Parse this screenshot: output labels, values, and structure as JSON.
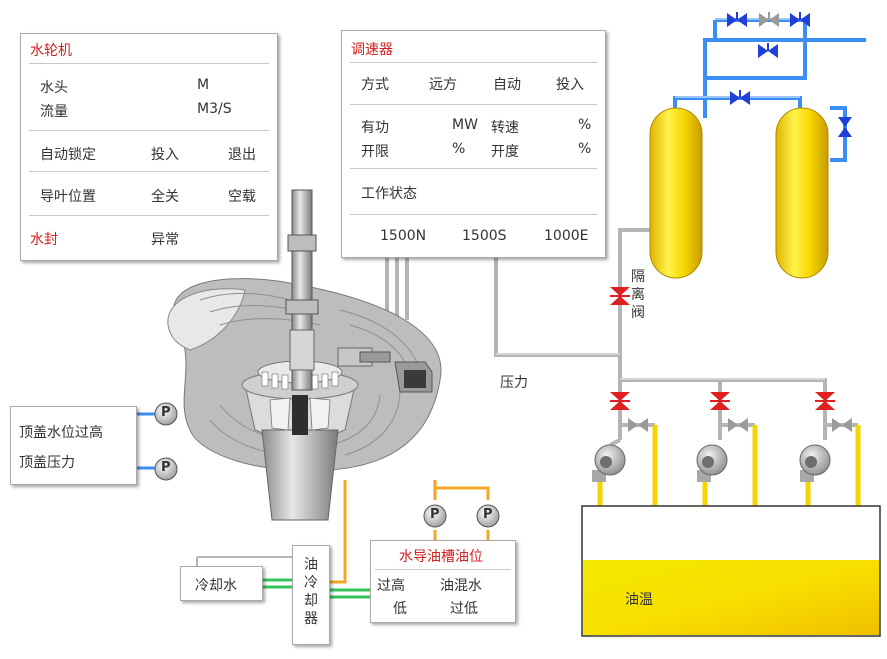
{
  "turbine_panel": {
    "title": "水轮机",
    "head_label": "水头",
    "head_unit": "M",
    "flow_label": "流量",
    "flow_unit": "M3/S",
    "auto_lock_label": "自动锁定",
    "auto_lock_on": "投入",
    "auto_lock_off": "退出",
    "guide_vane_label": "导叶位置",
    "guide_vane_closed": "全关",
    "guide_vane_noload": "空载",
    "water_seal_label": "水封",
    "water_seal_status": "异常"
  },
  "governor_panel": {
    "title": "调速器",
    "mode_label": "方式",
    "mode_remote": "远方",
    "mode_auto": "自动",
    "mode_on": "投入",
    "active_power_label": "有功",
    "active_power_unit": "MW",
    "speed_label": "转速",
    "speed_unit": "%",
    "opening_limit_label": "开限",
    "opening_limit_unit": "%",
    "opening_label": "开度",
    "opening_unit": "%",
    "work_state_label": "工作状态",
    "state_1500n": "1500N",
    "state_1500s": "1500S",
    "state_1000e": "1000E"
  },
  "top_cover_panel": {
    "water_level_high": "顶盖水位过高",
    "pressure": "顶盖压力"
  },
  "oil_level_panel": {
    "title": "水导油槽油位",
    "high": "过高",
    "low": "低",
    "oil_water_mix": "油混水",
    "oil_water_low": "过低"
  },
  "cooling_water_label": "冷却水",
  "oil_cooler_label": [
    "油",
    "冷",
    "却",
    "器"
  ],
  "pressure_label": "压力",
  "isolation_valve_label": [
    "隔",
    "离",
    "阀"
  ],
  "oil_temp_label": "油温",
  "gauge_letter": "P",
  "colors": {
    "blue_pipe": "#3b8ef5",
    "yellow_pipe": "#f5d400",
    "orange_pipe": "#f5a623",
    "green_pipe": "#38c25a",
    "red_valve": "#e02020",
    "blue_valve": "#1e3fd8",
    "gray_pipe": "#b4b4b4",
    "tank_yellow": "#f7e400"
  }
}
